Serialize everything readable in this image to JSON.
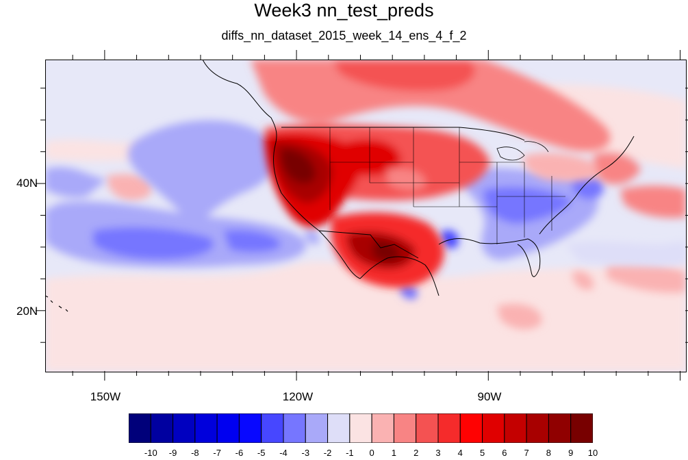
{
  "title": "Week3 nn_test_preds",
  "subtitle": "diffs_nn_dataset_2015_week_14_ens_4_f_2",
  "map": {
    "lon_labels": [
      "150W",
      "120W",
      "90W"
    ],
    "lat_labels": [
      "40N",
      "20N"
    ],
    "lon_range": [
      -159.3,
      -59.2
    ],
    "lat_range": [
      10.5,
      59.5
    ]
  },
  "colorbar": {
    "tick_labels": [
      "-10",
      "-9",
      "-8",
      "-7",
      "-6",
      "-5",
      "-4",
      "-3",
      "-2",
      "-1",
      "0",
      "1",
      "2",
      "3",
      "4",
      "5",
      "6",
      "7",
      "8",
      "9",
      "10"
    ],
    "colors": [
      "#00007a",
      "#0000a0",
      "#0000c0",
      "#0000dc",
      "#0000f0",
      "#0808ff",
      "#4747ff",
      "#7676ff",
      "#a9a9f9",
      "#dedef8",
      "#fbe3e3",
      "#fab2b2",
      "#f88484",
      "#f45252",
      "#f52b2b",
      "#ff0202",
      "#e00000",
      "#c40000",
      "#a80000",
      "#900000",
      "#780000"
    ]
  }
}
